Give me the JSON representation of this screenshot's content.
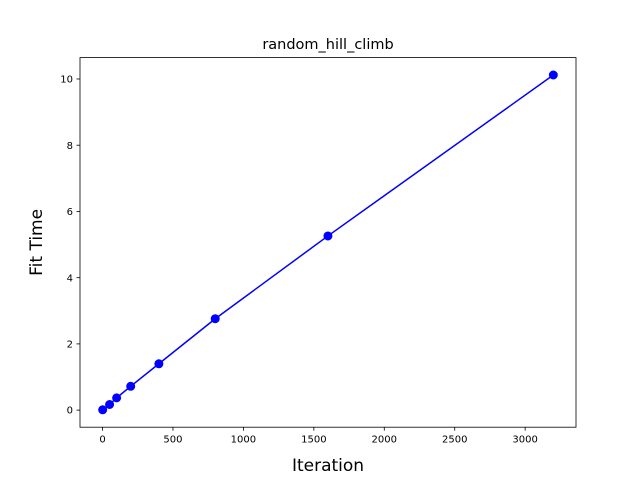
{
  "chart_data": {
    "type": "line",
    "title": "random_hill_climb",
    "xlabel": "Iteration",
    "ylabel": "Fit Time",
    "x": [
      1,
      50,
      100,
      200,
      400,
      800,
      1600,
      3200
    ],
    "series": [
      {
        "values": [
          0.01,
          0.17,
          0.37,
          0.72,
          1.4,
          2.76,
          5.26,
          10.12
        ],
        "color": "#0000ff",
        "marker": "circle"
      }
    ],
    "xlim": [
      -159.95,
      3360.95
    ],
    "ylim": [
      -0.5155,
      10.6455
    ],
    "xticks": [
      0,
      500,
      1000,
      1500,
      2000,
      2500,
      3000
    ],
    "yticks": [
      0,
      2,
      4,
      6,
      8,
      10
    ],
    "grid": false,
    "legend": "none"
  }
}
